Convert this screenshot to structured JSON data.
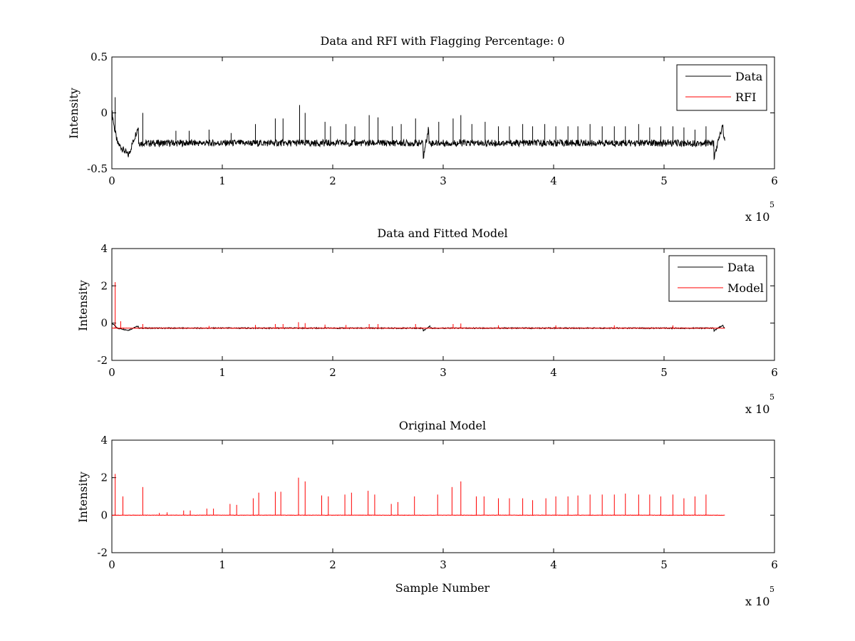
{
  "chart_data": [
    {
      "type": "line",
      "title": "Data and RFI with Flagging Percentage: 0",
      "xlabel": "",
      "ylabel": "Intensity",
      "xlim": [
        0,
        600000
      ],
      "ylim": [
        -0.5,
        0.5
      ],
      "x_ticks": [
        "0",
        "1",
        "2",
        "3",
        "4",
        "5",
        "6"
      ],
      "y_ticks": [
        "-0.5",
        "0",
        "0.5"
      ],
      "x_multiplier": "x 10",
      "x_multiplier_exponent": "5",
      "legend": {
        "placement": "top-right",
        "entries": [
          {
            "label": "Data",
            "color": "#000000"
          },
          {
            "label": "RFI",
            "color": "#ff0000"
          }
        ]
      },
      "series": [
        {
          "name": "Data",
          "color": "#000000",
          "baseline": -0.27,
          "x_range": [
            0,
            555000
          ],
          "dips": [
            {
              "x": 0,
              "y": 0.02
            },
            {
              "x": 2000,
              "y": -0.12
            },
            {
              "x": 5000,
              "y": -0.27
            },
            {
              "x": 15000,
              "y": -0.38
            },
            {
              "x": 24000,
              "y": -0.12
            },
            {
              "x": 282000,
              "y": -0.4
            },
            {
              "x": 287000,
              "y": -0.12
            },
            {
              "x": 545000,
              "y": -0.41
            },
            {
              "x": 553000,
              "y": -0.11
            },
            {
              "x": 555000,
              "y": -0.27
            }
          ],
          "spikes": [
            {
              "x": 3000,
              "y": 0.14
            },
            {
              "x": 28000,
              "y": 0.0
            },
            {
              "x": 58000,
              "y": -0.16
            },
            {
              "x": 70000,
              "y": -0.16
            },
            {
              "x": 88000,
              "y": -0.15
            },
            {
              "x": 108000,
              "y": -0.18
            },
            {
              "x": 130000,
              "y": -0.1
            },
            {
              "x": 148000,
              "y": -0.05
            },
            {
              "x": 155000,
              "y": -0.05
            },
            {
              "x": 170000,
              "y": 0.07
            },
            {
              "x": 175000,
              "y": 0.0
            },
            {
              "x": 193000,
              "y": -0.08
            },
            {
              "x": 198000,
              "y": -0.12
            },
            {
              "x": 212000,
              "y": -0.1
            },
            {
              "x": 220000,
              "y": -0.12
            },
            {
              "x": 233000,
              "y": -0.02
            },
            {
              "x": 241000,
              "y": -0.04
            },
            {
              "x": 254000,
              "y": -0.12
            },
            {
              "x": 262000,
              "y": -0.1
            },
            {
              "x": 275000,
              "y": -0.05
            },
            {
              "x": 296000,
              "y": -0.08
            },
            {
              "x": 309000,
              "y": -0.05
            },
            {
              "x": 316000,
              "y": -0.02
            },
            {
              "x": 326000,
              "y": -0.1
            },
            {
              "x": 338000,
              "y": -0.08
            },
            {
              "x": 350000,
              "y": -0.12
            },
            {
              "x": 360000,
              "y": -0.12
            },
            {
              "x": 372000,
              "y": -0.1
            },
            {
              "x": 381000,
              "y": -0.12
            },
            {
              "x": 392000,
              "y": -0.1
            },
            {
              "x": 402000,
              "y": -0.12
            },
            {
              "x": 413000,
              "y": -0.12
            },
            {
              "x": 422000,
              "y": -0.12
            },
            {
              "x": 433000,
              "y": -0.1
            },
            {
              "x": 444000,
              "y": -0.12
            },
            {
              "x": 455000,
              "y": -0.12
            },
            {
              "x": 465000,
              "y": -0.12
            },
            {
              "x": 477000,
              "y": -0.1
            },
            {
              "x": 487000,
              "y": -0.13
            },
            {
              "x": 497000,
              "y": -0.12
            },
            {
              "x": 508000,
              "y": -0.12
            },
            {
              "x": 518000,
              "y": -0.13
            },
            {
              "x": 528000,
              "y": -0.15
            },
            {
              "x": 538000,
              "y": -0.12
            }
          ]
        },
        {
          "name": "RFI",
          "color": "#ff0000",
          "values": []
        }
      ]
    },
    {
      "type": "line",
      "title": "Data and Fitted Model",
      "xlabel": "",
      "ylabel": "Intensity",
      "xlim": [
        0,
        600000
      ],
      "ylim": [
        -2,
        4
      ],
      "x_ticks": [
        "0",
        "1",
        "2",
        "3",
        "4",
        "5",
        "6"
      ],
      "y_ticks": [
        "-2",
        "0",
        "2",
        "4"
      ],
      "x_multiplier": "x 10",
      "x_multiplier_exponent": "5",
      "legend": {
        "placement": "top-right",
        "entries": [
          {
            "label": "Data",
            "color": "#000000"
          },
          {
            "label": "Model",
            "color": "#ff0000"
          }
        ]
      },
      "series": [
        {
          "name": "Data",
          "color": "#000000",
          "baseline": -0.27,
          "x_range": [
            0,
            555000
          ],
          "dips": [
            {
              "x": 0,
              "y": 0.0
            },
            {
              "x": 5000,
              "y": -0.27
            },
            {
              "x": 15000,
              "y": -0.38
            },
            {
              "x": 24000,
              "y": -0.15
            },
            {
              "x": 282000,
              "y": -0.42
            },
            {
              "x": 288000,
              "y": -0.15
            },
            {
              "x": 545000,
              "y": -0.42
            },
            {
              "x": 553000,
              "y": -0.12
            },
            {
              "x": 555000,
              "y": -0.27
            }
          ],
          "spikes": []
        },
        {
          "name": "Model",
          "color": "#ff0000",
          "baseline": -0.27,
          "x_range": [
            0,
            555000
          ],
          "spikes": [
            {
              "x": 3000,
              "y": 2.2
            },
            {
              "x": 8000,
              "y": 0.1
            },
            {
              "x": 28000,
              "y": -0.05
            },
            {
              "x": 88000,
              "y": -0.15
            },
            {
              "x": 130000,
              "y": -0.1
            },
            {
              "x": 148000,
              "y": -0.05
            },
            {
              "x": 155000,
              "y": -0.05
            },
            {
              "x": 169000,
              "y": 0.05
            },
            {
              "x": 175000,
              "y": 0.0
            },
            {
              "x": 193000,
              "y": -0.08
            },
            {
              "x": 212000,
              "y": -0.1
            },
            {
              "x": 233000,
              "y": -0.05
            },
            {
              "x": 241000,
              "y": -0.05
            },
            {
              "x": 275000,
              "y": -0.05
            },
            {
              "x": 309000,
              "y": -0.05
            },
            {
              "x": 316000,
              "y": -0.02
            },
            {
              "x": 350000,
              "y": -0.12
            },
            {
              "x": 402000,
              "y": -0.12
            },
            {
              "x": 455000,
              "y": -0.12
            },
            {
              "x": 508000,
              "y": -0.12
            }
          ]
        }
      ]
    },
    {
      "type": "line",
      "title": "Original Model",
      "xlabel": "Sample Number",
      "ylabel": "Intensity",
      "xlim": [
        0,
        600000
      ],
      "ylim": [
        -2,
        4
      ],
      "x_ticks": [
        "0",
        "1",
        "2",
        "3",
        "4",
        "5",
        "6"
      ],
      "y_ticks": [
        "-2",
        "0",
        "2",
        "4"
      ],
      "x_multiplier": "x 10",
      "x_multiplier_exponent": "5",
      "series": [
        {
          "name": "Original Model",
          "color": "#ff0000",
          "baseline": 0.0,
          "x_range": [
            0,
            555000
          ],
          "spikes": [
            {
              "x": 3000,
              "y": 2.2
            },
            {
              "x": 10000,
              "y": 1.0
            },
            {
              "x": 28000,
              "y": 1.5
            },
            {
              "x": 43000,
              "y": 0.12
            },
            {
              "x": 50000,
              "y": 0.15
            },
            {
              "x": 65000,
              "y": 0.25
            },
            {
              "x": 71000,
              "y": 0.25
            },
            {
              "x": 86000,
              "y": 0.35
            },
            {
              "x": 92000,
              "y": 0.35
            },
            {
              "x": 107000,
              "y": 0.6
            },
            {
              "x": 113000,
              "y": 0.55
            },
            {
              "x": 128000,
              "y": 0.9
            },
            {
              "x": 133000,
              "y": 1.2
            },
            {
              "x": 148000,
              "y": 1.25
            },
            {
              "x": 153000,
              "y": 1.25
            },
            {
              "x": 169000,
              "y": 2.0
            },
            {
              "x": 175000,
              "y": 1.8
            },
            {
              "x": 190000,
              "y": 1.05
            },
            {
              "x": 196000,
              "y": 1.0
            },
            {
              "x": 211000,
              "y": 1.1
            },
            {
              "x": 217000,
              "y": 1.2
            },
            {
              "x": 232000,
              "y": 1.3
            },
            {
              "x": 238000,
              "y": 1.1
            },
            {
              "x": 253000,
              "y": 0.6
            },
            {
              "x": 259000,
              "y": 0.7
            },
            {
              "x": 274000,
              "y": 1.0
            },
            {
              "x": 295000,
              "y": 1.1
            },
            {
              "x": 308000,
              "y": 1.5
            },
            {
              "x": 316000,
              "y": 1.8
            },
            {
              "x": 330000,
              "y": 1.0
            },
            {
              "x": 337000,
              "y": 1.0
            },
            {
              "x": 350000,
              "y": 0.9
            },
            {
              "x": 360000,
              "y": 0.9
            },
            {
              "x": 372000,
              "y": 0.9
            },
            {
              "x": 381000,
              "y": 0.8
            },
            {
              "x": 393000,
              "y": 0.9
            },
            {
              "x": 402000,
              "y": 1.0
            },
            {
              "x": 413000,
              "y": 1.0
            },
            {
              "x": 422000,
              "y": 1.05
            },
            {
              "x": 433000,
              "y": 1.1
            },
            {
              "x": 444000,
              "y": 1.1
            },
            {
              "x": 455000,
              "y": 1.1
            },
            {
              "x": 465000,
              "y": 1.15
            },
            {
              "x": 477000,
              "y": 1.1
            },
            {
              "x": 487000,
              "y": 1.1
            },
            {
              "x": 497000,
              "y": 1.0
            },
            {
              "x": 508000,
              "y": 1.1
            },
            {
              "x": 518000,
              "y": 0.9
            },
            {
              "x": 528000,
              "y": 1.0
            },
            {
              "x": 538000,
              "y": 1.1
            }
          ]
        }
      ]
    }
  ]
}
